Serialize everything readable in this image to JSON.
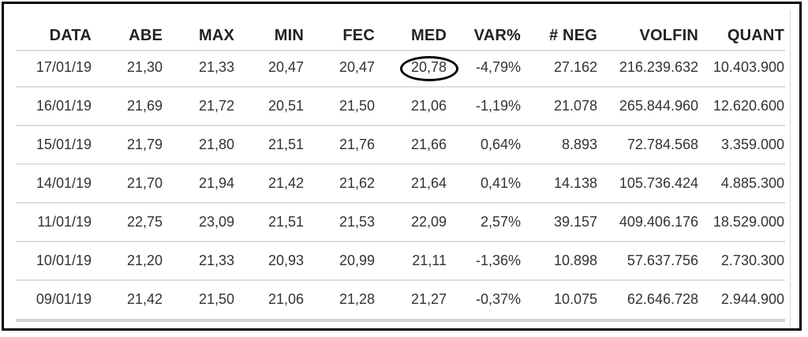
{
  "table": {
    "headers": [
      "DATA",
      "ABE",
      "MAX",
      "MIN",
      "FEC",
      "MED",
      "VAR%",
      "# NEG",
      "VOLFIN",
      "QUANT"
    ],
    "rows": [
      [
        "17/01/19",
        "21,30",
        "21,33",
        "20,47",
        "20,47",
        "20,78",
        "-4,79%",
        "27.162",
        "216.239.632",
        "10.403.900"
      ],
      [
        "16/01/19",
        "21,69",
        "21,72",
        "20,51",
        "21,50",
        "21,06",
        "-1,19%",
        "21.078",
        "265.844.960",
        "12.620.600"
      ],
      [
        "15/01/19",
        "21,79",
        "21,80",
        "21,51",
        "21,76",
        "21,66",
        "0,64%",
        "8.893",
        "72.784.568",
        "3.359.000"
      ],
      [
        "14/01/19",
        "21,70",
        "21,94",
        "21,42",
        "21,62",
        "21,64",
        "0,41%",
        "14.138",
        "105.736.424",
        "4.885.300"
      ],
      [
        "11/01/19",
        "22,75",
        "23,09",
        "21,51",
        "21,53",
        "22,09",
        "2,57%",
        "39.157",
        "409.406.176",
        "18.529.000"
      ],
      [
        "10/01/19",
        "21,20",
        "21,33",
        "20,93",
        "20,99",
        "21,11",
        "-1,36%",
        "10.898",
        "57.637.756",
        "2.730.300"
      ],
      [
        "09/01/19",
        "21,42",
        "21,50",
        "21,06",
        "21,28",
        "21,27",
        "-0,37%",
        "10.075",
        "62.646.728",
        "2.944.900"
      ]
    ],
    "highlighted_cell": {
      "row": 0,
      "column": "MED"
    }
  },
  "colors": {
    "border": "#000000",
    "divider": "#dedede",
    "text": "#333333",
    "header_text": "#222222"
  }
}
